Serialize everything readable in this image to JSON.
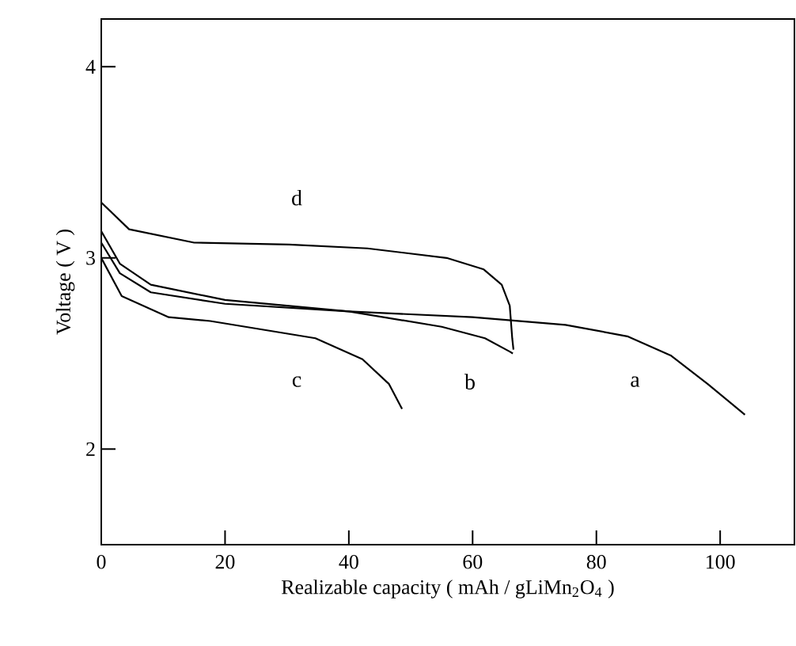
{
  "chart_data": {
    "type": "line",
    "xlabel": "Realizable capacity ( mAh / gLiMn$_{2}$O$_{4}$ )",
    "ylabel": "Voltage ( V )",
    "xlim": [
      0,
      112
    ],
    "ylim": [
      1.5,
      4.25
    ],
    "xticks": [
      0,
      20,
      40,
      60,
      80,
      100
    ],
    "yticks": [
      2,
      3,
      4
    ],
    "grid": false,
    "legend": false,
    "series": [
      {
        "name": "a",
        "color": "#000000",
        "x": [
          0,
          3,
          8,
          20,
          40,
          60,
          75,
          85,
          92,
          98,
          104
        ],
        "values": [
          3.08,
          2.92,
          2.82,
          2.76,
          2.72,
          2.69,
          2.65,
          2.59,
          2.49,
          2.34,
          2.18
        ]
      },
      {
        "name": "b",
        "color": "#000000",
        "x": [
          0,
          3,
          8,
          20,
          40,
          55,
          62,
          66,
          66.5
        ],
        "values": [
          3.14,
          2.97,
          2.86,
          2.78,
          2.72,
          2.64,
          2.58,
          2.51,
          2.5
        ]
      },
      {
        "name": "c",
        "color": "#000000",
        "x": [
          0,
          3.3,
          10.9,
          17.6,
          34.6,
          42.2,
          46.5,
          48.6
        ],
        "values": [
          3.0,
          2.8,
          2.69,
          2.67,
          2.58,
          2.47,
          2.34,
          2.21
        ]
      },
      {
        "name": "d",
        "color": "#000000",
        "x": [
          0,
          4.5,
          15,
          30.3,
          43,
          55.8,
          61.8,
          64.7,
          66,
          66.4,
          66.6
        ],
        "values": [
          3.29,
          3.15,
          3.08,
          3.07,
          3.05,
          3.0,
          2.94,
          2.86,
          2.75,
          2.58,
          2.52
        ]
      }
    ]
  }
}
